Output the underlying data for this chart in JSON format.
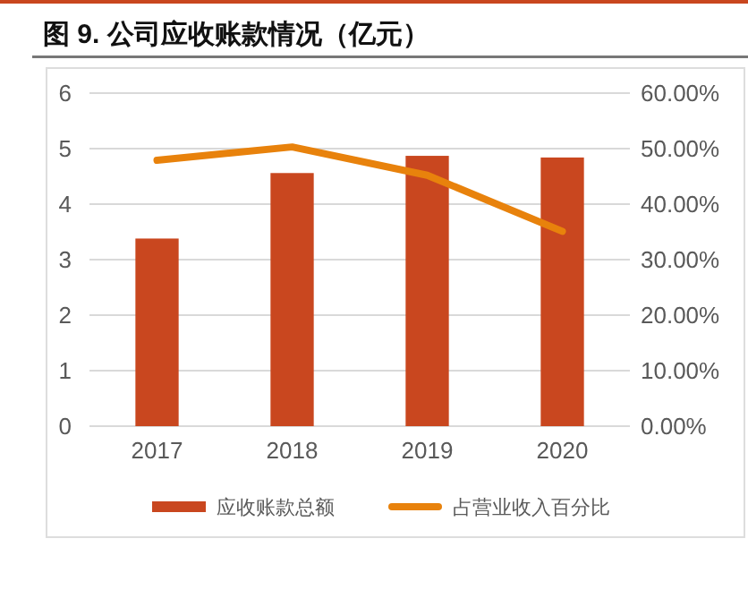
{
  "chart_data": {
    "type": "bar",
    "title": "图 9. 公司应收账款情况（亿元）",
    "categories": [
      "2017",
      "2018",
      "2019",
      "2020"
    ],
    "series": [
      {
        "name": "应收账款总额",
        "color": "#c9471f",
        "values": [
          3.38,
          4.56,
          4.87,
          4.84
        ]
      },
      {
        "name": "占营业收入百分比",
        "type": "line",
        "axis": "y2",
        "color": "#e8820c",
        "values": [
          47.9,
          50.3,
          45.2,
          35.1
        ]
      }
    ],
    "ylim": [
      0,
      6
    ],
    "yticks": [
      0,
      1,
      2,
      3,
      4,
      5,
      6
    ],
    "y2lim": [
      0,
      60
    ],
    "y2ticks": [
      {
        "value": 0,
        "label": "0.00%"
      },
      {
        "value": 10,
        "label": "10.00%"
      },
      {
        "value": 20,
        "label": "20.00%"
      },
      {
        "value": 30,
        "label": "30.00%"
      },
      {
        "value": 40,
        "label": "40.00%"
      },
      {
        "value": 50,
        "label": "50.00%"
      },
      {
        "value": 60,
        "label": "60.00%"
      }
    ],
    "grid": "y",
    "legend": "bottom",
    "line_style": "solid",
    "marker": "none"
  }
}
